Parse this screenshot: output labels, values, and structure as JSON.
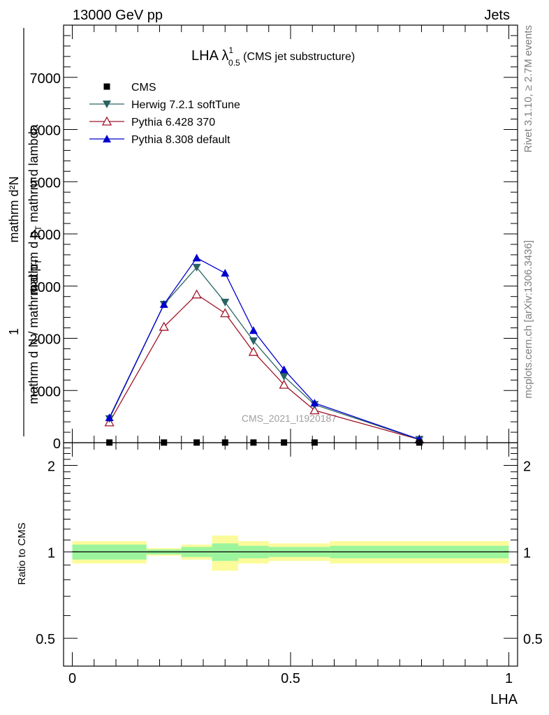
{
  "header": {
    "left": "13000 GeV pp",
    "right": "Jets"
  },
  "side_labels": {
    "rivet": "Rivet 3.1.10, ≥ 2.7M events",
    "mcplots": "mcplots.cern.ch [arXiv:1306.3436]"
  },
  "title": {
    "main": "LHA λ",
    "sup": "1",
    "sub": "0.5",
    "suffix": " (CMS jet substructure)"
  },
  "watermark": "CMS_2021_I1920187",
  "ylabel_top": {
    "numerator": "mathrm d²N",
    "denominator": "mathrm d p",
    "den_sub": "T",
    "den_tail": " mathrm d lambda"
  },
  "ylabel_prefix": {
    "numerator": "1",
    "denominator": "mathrm d N / mathrm d p",
    "den_sub": "T"
  },
  "ylabel_ratio": "Ratio to CMS",
  "xlabel": "LHA",
  "legend": [
    {
      "label": "CMS",
      "marker": "square",
      "color": "#000000"
    },
    {
      "label": "Herwig 7.2.1 softTune",
      "marker": "triangle-down",
      "color": "#2a6363"
    },
    {
      "label": "Pythia 6.428 370",
      "marker": "triangle-open",
      "color": "#a0142a"
    },
    {
      "label": "Pythia 8.308 default",
      "marker": "triangle-up",
      "color": "#0000cc"
    }
  ],
  "chart_data": {
    "type": "line",
    "x": [
      0.085,
      0.21,
      0.285,
      0.35,
      0.415,
      0.485,
      0.555,
      0.795
    ],
    "series": [
      {
        "name": "CMS",
        "values": [
          3,
          3,
          3,
          3,
          3,
          3,
          3,
          3
        ]
      },
      {
        "name": "Herwig 7.2.1 softTune",
        "values": [
          460,
          2650,
          3360,
          2690,
          1950,
          1270,
          730,
          60
        ]
      },
      {
        "name": "Pythia 6.428 370",
        "values": [
          390,
          2220,
          2840,
          2480,
          1740,
          1110,
          620,
          60
        ]
      },
      {
        "name": "Pythia 8.308 default",
        "values": [
          480,
          2650,
          3540,
          3250,
          2150,
          1400,
          760,
          65
        ]
      }
    ],
    "xlim": [
      -0.02,
      1.02
    ],
    "ylim": [
      0,
      8000
    ],
    "yticks": [
      0,
      1000,
      2000,
      3000,
      4000,
      5000,
      6000,
      7000
    ],
    "yticklabels": [
      "0",
      "1000",
      "2000",
      "3000",
      "4000",
      "5000",
      "6000",
      "7000"
    ],
    "ratio": {
      "ylim": [
        0.4,
        2.4
      ],
      "yticks": [
        0.5,
        1,
        2
      ],
      "yticklabels": [
        "0.5",
        "1",
        "2"
      ],
      "bins": [
        {
          "x0": 0.0,
          "x1": 0.17,
          "inner": [
            0.94,
            1.06
          ],
          "outer": [
            0.91,
            1.09
          ]
        },
        {
          "x0": 0.17,
          "x1": 0.25,
          "inner": [
            0.98,
            1.02
          ],
          "outer": [
            0.97,
            1.03
          ]
        },
        {
          "x0": 0.25,
          "x1": 0.32,
          "inner": [
            0.96,
            1.04
          ],
          "outer": [
            0.94,
            1.06
          ]
        },
        {
          "x0": 0.32,
          "x1": 0.38,
          "inner": [
            0.93,
            1.07
          ],
          "outer": [
            0.86,
            1.14
          ]
        },
        {
          "x0": 0.38,
          "x1": 0.45,
          "inner": [
            0.95,
            1.05
          ],
          "outer": [
            0.91,
            1.09
          ]
        },
        {
          "x0": 0.45,
          "x1": 0.59,
          "inner": [
            0.96,
            1.04
          ],
          "outer": [
            0.93,
            1.07
          ]
        },
        {
          "x0": 0.59,
          "x1": 1.0,
          "inner": [
            0.95,
            1.05
          ],
          "outer": [
            0.91,
            1.09
          ]
        }
      ]
    },
    "xticks": [
      0,
      0.5,
      1
    ],
    "xticklabels": [
      "0",
      "0.5",
      "1"
    ]
  },
  "colors": {
    "band_inner": "#9cf59c",
    "band_outer": "#fbfb9c"
  }
}
